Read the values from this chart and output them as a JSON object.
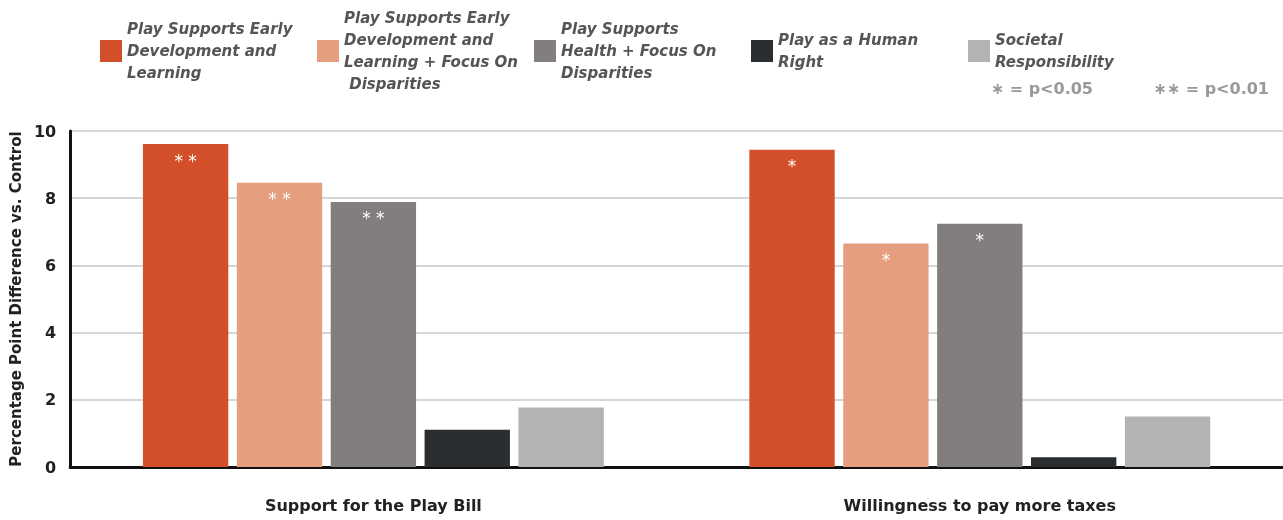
{
  "chart_data": {
    "type": "bar",
    "categories": [
      "Support for the Play Bill",
      "Willingness to pay more taxes"
    ],
    "ylabel": "Percentage Point Difference vs. Control",
    "ylim": [
      0,
      10
    ],
    "yticks": [
      0,
      2,
      4,
      6,
      8,
      10
    ],
    "grid": "y",
    "legend": "top",
    "annotations": [
      "∗ = p<0.05",
      "∗∗ = p<0.01"
    ],
    "series": [
      {
        "name": "Play Supports Early Development and Learning",
        "color": "#d34f2a",
        "values": [
          9.61,
          9.44
        ],
        "value_labels": [
          "* *",
          "*"
        ]
      },
      {
        "name": "Play Supports Early Development and Learning + Focus On Disparities",
        "color": "#e59e7e",
        "values": [
          8.46,
          6.65
        ],
        "value_labels": [
          "* *",
          "*"
        ]
      },
      {
        "name": "Play Supports Health + Focus On Disparities",
        "color": "#827e7d",
        "values": [
          7.89,
          7.24
        ],
        "value_labels": [
          "* *",
          "*"
        ]
      },
      {
        "name": "Play as a Human Right",
        "color": "#2b2e31",
        "values": [
          1.11,
          0.29
        ]
      },
      {
        "name": "Societal Responsibility",
        "color": "#b3b3b3",
        "values": [
          1.77,
          1.5
        ]
      }
    ]
  }
}
